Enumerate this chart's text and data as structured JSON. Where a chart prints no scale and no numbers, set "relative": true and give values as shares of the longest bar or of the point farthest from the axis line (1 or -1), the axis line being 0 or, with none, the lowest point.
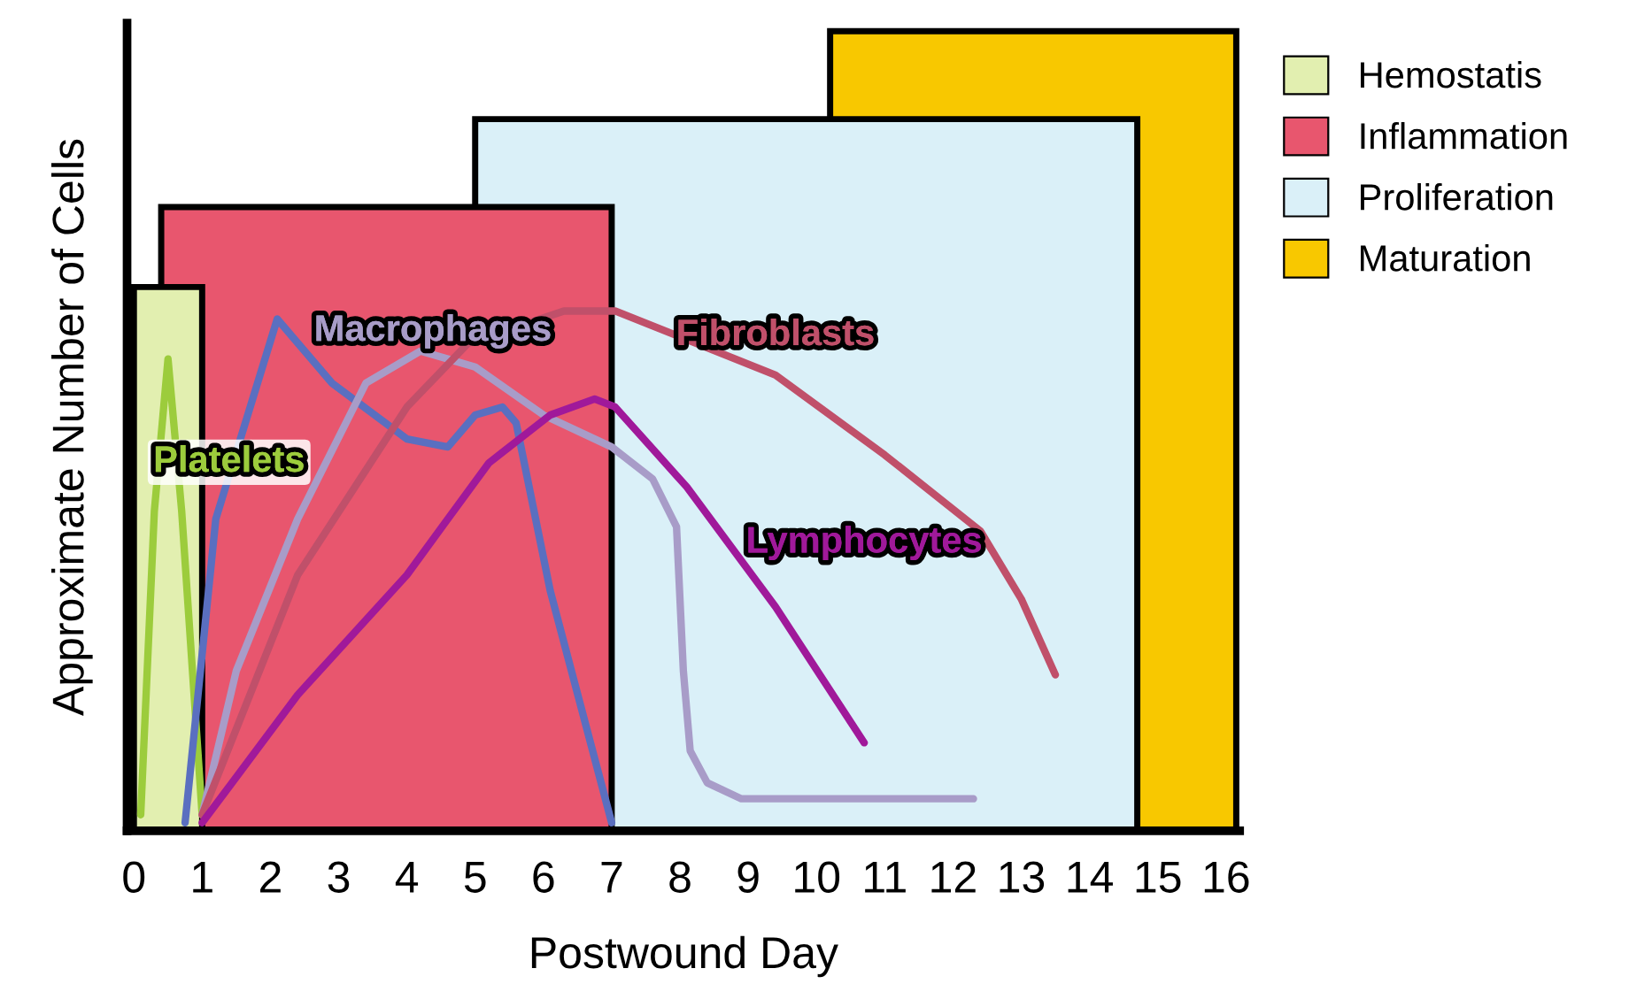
{
  "chart_data": {
    "type": "line",
    "relative": true,
    "xlabel": "Postwound Day",
    "ylabel": "Approximate Number of Cells",
    "xlim": [
      -0.1,
      16.2
    ],
    "xticks": [
      0,
      1,
      2,
      3,
      4,
      5,
      6,
      7,
      8,
      9,
      10,
      11,
      12,
      13,
      14,
      15,
      16
    ],
    "legend": "top right",
    "grid": false,
    "series": [
      {
        "name": "Hemostatis",
        "type": "area",
        "color": "#e2efb0",
        "x": [
          0,
          1.0
        ],
        "values": [
          0.68,
          0.68
        ]
      },
      {
        "name": "Inflammation",
        "type": "area",
        "color": "#e8566e",
        "x": [
          0.4,
          7.0
        ],
        "values": [
          0.78,
          0.78
        ]
      },
      {
        "name": "Proliferation",
        "type": "area",
        "color": "#daf0f8",
        "x": [
          5.0,
          14.7
        ],
        "values": [
          0.89,
          0.89
        ]
      },
      {
        "name": "Maturation",
        "type": "area",
        "color": "#f8c800",
        "x": [
          10.2,
          16.15
        ],
        "values": [
          1,
          1
        ]
      },
      {
        "name": "Platelets",
        "color": "#9ccc3c",
        "x": [
          0.1,
          0.3,
          0.5,
          0.7,
          1.0
        ],
        "values": [
          0.02,
          0.4,
          0.59,
          0.4,
          0.02
        ]
      },
      {
        "color": "#5a6fc0",
        "x": [
          0.75,
          1.2,
          2.1,
          2.9,
          4.0,
          4.6,
          5.0,
          5.4,
          5.6,
          6.1,
          7.0
        ],
        "values": [
          0.01,
          0.39,
          0.64,
          0.56,
          0.49,
          0.48,
          0.52,
          0.53,
          0.51,
          0.3,
          0.01
        ]
      },
      {
        "name": "Macrophages",
        "color": "#a89cc8",
        "x": [
          1.0,
          1.5,
          2.4,
          3.4,
          4.2,
          5.0,
          6.0,
          7.0,
          7.6,
          7.95,
          8.05,
          8.15,
          8.4,
          8.9,
          12.3
        ],
        "values": [
          0.02,
          0.2,
          0.39,
          0.56,
          0.6,
          0.58,
          0.52,
          0.48,
          0.44,
          0.38,
          0.2,
          0.1,
          0.06,
          0.04,
          0.04
        ]
      },
      {
        "name": "Fibroblasts",
        "color": "#c0506a",
        "x": [
          1.0,
          2.4,
          4.0,
          4.9,
          6.3,
          7.05,
          9.4,
          11.0,
          12.4,
          13.0,
          13.5
        ],
        "values": [
          0.02,
          0.32,
          0.53,
          0.61,
          0.65,
          0.65,
          0.57,
          0.47,
          0.375,
          0.29,
          0.195
        ]
      },
      {
        "name": "Lymphocytes",
        "color": "#a0199a",
        "x": [
          1.0,
          2.4,
          4.0,
          5.2,
          6.1,
          6.75,
          7.05,
          8.1,
          9.4,
          10.7
        ],
        "values": [
          0.01,
          0.17,
          0.32,
          0.46,
          0.52,
          0.54,
          0.53,
          0.43,
          0.28,
          0.11
        ]
      }
    ]
  }
}
